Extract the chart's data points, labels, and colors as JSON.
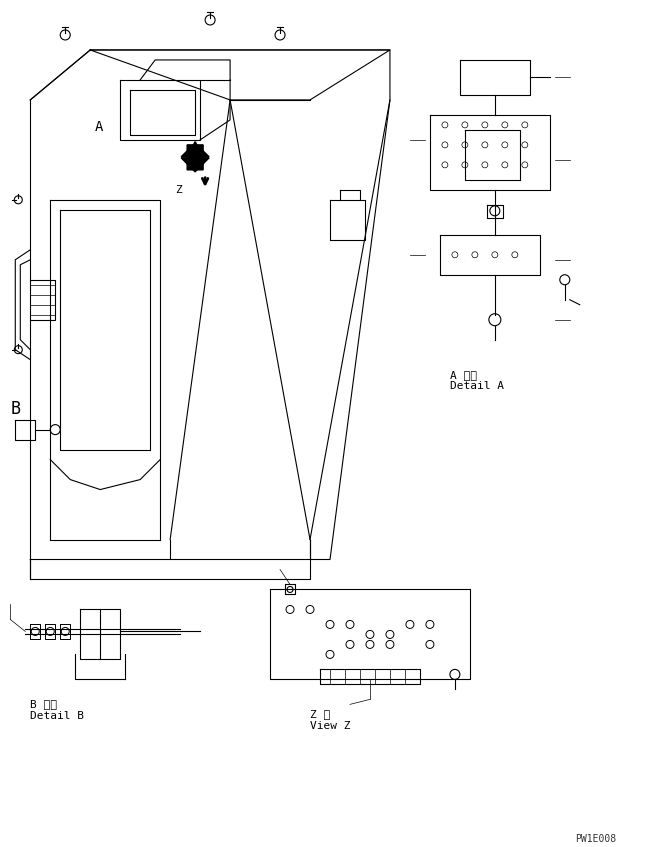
{
  "bg_color": "#ffffff",
  "line_color": "#000000",
  "fig_width": 6.66,
  "fig_height": 8.47,
  "dpi": 100,
  "watermark": "PW1E008",
  "label_A_detail": "A 詳細\nDetail A",
  "label_B_detail": "B 詳細\nDetail B",
  "label_Z_view": "Z 視\nView Z"
}
